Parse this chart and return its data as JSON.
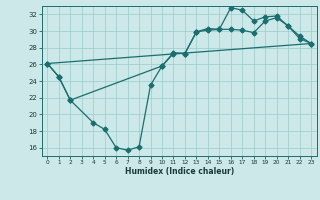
{
  "xlabel": "Humidex (Indice chaleur)",
  "bg_color": "#cce8e8",
  "grid_color": "#99cccc",
  "line_color": "#1a6e6e",
  "xlim": [
    -0.5,
    23.5
  ],
  "ylim": [
    15.0,
    33.0
  ],
  "yticks": [
    16,
    18,
    20,
    22,
    24,
    26,
    28,
    30,
    32
  ],
  "xticks": [
    0,
    1,
    2,
    3,
    4,
    5,
    6,
    7,
    8,
    9,
    10,
    11,
    12,
    13,
    14,
    15,
    16,
    17,
    18,
    19,
    20,
    21,
    22,
    23
  ],
  "line1_x": [
    0,
    1,
    2,
    4,
    5,
    6,
    7,
    8,
    9,
    10,
    11,
    12,
    13,
    14,
    15,
    16,
    17,
    18,
    19,
    20,
    21,
    22,
    23
  ],
  "line1_y": [
    26.1,
    24.5,
    21.7,
    19.0,
    18.2,
    16.0,
    15.7,
    16.1,
    23.5,
    25.8,
    27.4,
    27.3,
    29.9,
    30.3,
    30.2,
    32.8,
    32.5,
    31.2,
    31.7,
    31.8,
    30.6,
    29.4,
    28.5
  ],
  "line2_x": [
    0,
    1,
    2,
    10,
    11,
    12,
    13,
    14,
    15,
    16,
    17,
    18,
    19,
    20,
    21,
    22,
    23
  ],
  "line2_y": [
    26.1,
    24.5,
    21.7,
    25.8,
    27.3,
    27.3,
    29.9,
    30.1,
    30.2,
    30.2,
    30.1,
    29.8,
    31.2,
    31.6,
    30.6,
    29.1,
    28.5
  ],
  "line3_x": [
    0,
    23
  ],
  "line3_y": [
    26.1,
    28.5
  ]
}
